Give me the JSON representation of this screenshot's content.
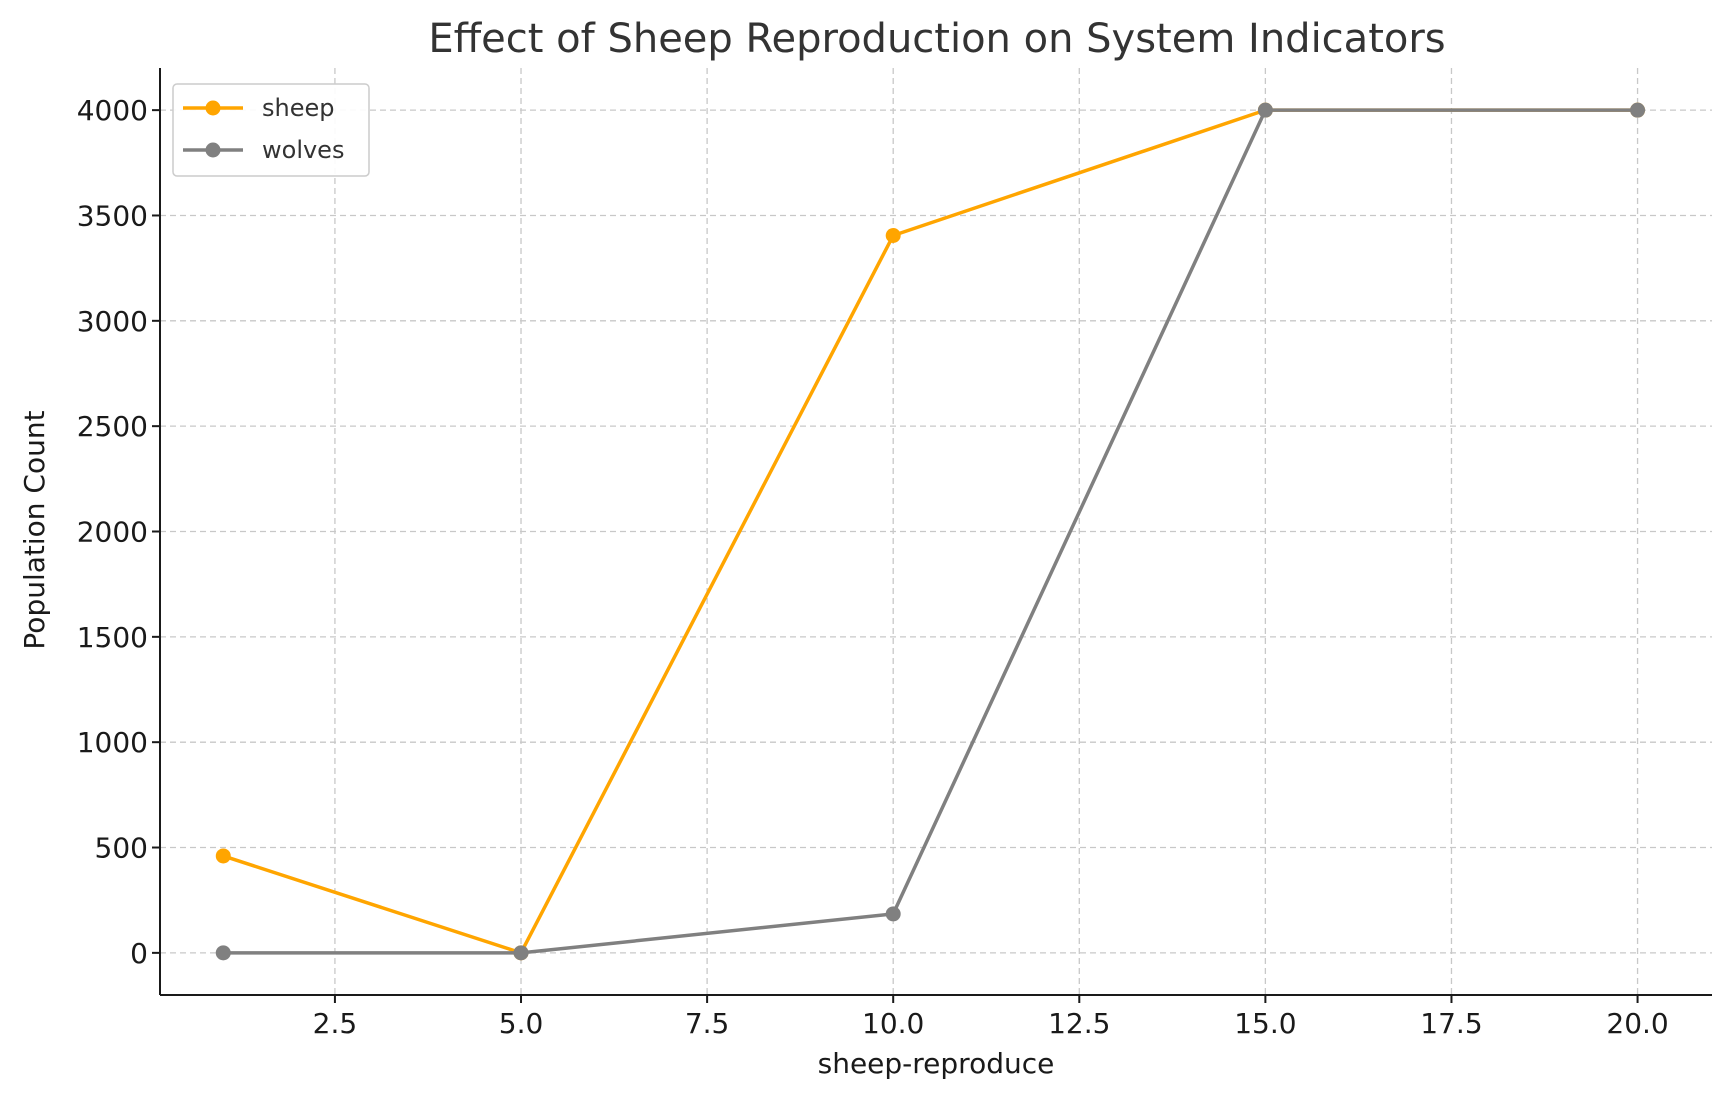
{
  "chart_data": {
    "type": "line",
    "title": "Effect of Sheep Reproduction on System Indicators",
    "xlabel": "sheep-reproduce",
    "ylabel": "Population Count",
    "x": [
      1,
      5,
      10,
      15,
      20
    ],
    "xlim": [
      0.15,
      21.0
    ],
    "ylim": [
      -200,
      4200
    ],
    "xticks": [
      2.5,
      5.0,
      7.5,
      10.0,
      12.5,
      15.0,
      17.5,
      20.0
    ],
    "xtick_labels": [
      "2.5",
      "5.0",
      "7.5",
      "10.0",
      "12.5",
      "15.0",
      "17.5",
      "20.0"
    ],
    "yticks": [
      0,
      500,
      1000,
      1500,
      2000,
      2500,
      3000,
      3500,
      4000
    ],
    "ytick_labels": [
      "0",
      "500",
      "1000",
      "1500",
      "2000",
      "2500",
      "3000",
      "3500",
      "4000"
    ],
    "grid": true,
    "legend_position": "top-left",
    "series": [
      {
        "name": "sheep",
        "color": "#FFA500",
        "values": [
          460,
          0,
          3405,
          4000,
          4000
        ]
      },
      {
        "name": "wolves",
        "color": "#808080",
        "values": [
          0,
          0,
          185,
          4000,
          4000
        ]
      }
    ]
  }
}
